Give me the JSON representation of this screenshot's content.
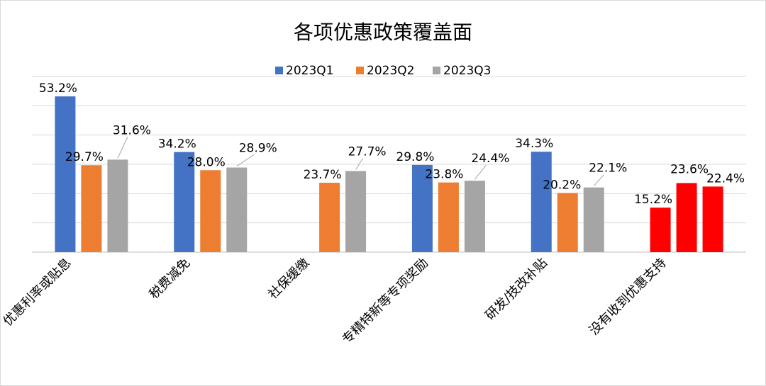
{
  "chart_data": {
    "type": "bar",
    "title": "各项优惠政策覆盖面",
    "categories": [
      "优惠利率或贴息",
      "税费减免",
      "社保缓缴",
      "专精特新等专项奖励",
      "研发/技改补贴",
      "没有收到优惠支持"
    ],
    "series": [
      {
        "name": "2023Q1",
        "color": "#4472C4",
        "values": [
          53.2,
          34.2,
          null,
          29.8,
          34.3,
          15.2
        ],
        "labels": [
          "53.2%",
          "34.2%",
          "",
          "29.8%",
          "34.3%",
          "15.2%"
        ]
      },
      {
        "name": "2023Q2",
        "color": "#ED7D31",
        "values": [
          29.7,
          28.0,
          23.7,
          23.8,
          20.2,
          23.6
        ],
        "labels": [
          "29.7%",
          "28.0%",
          "23.7%",
          "23.8%",
          "20.2%",
          "23.6%"
        ]
      },
      {
        "name": "2023Q3",
        "color": "#A5A5A5",
        "values": [
          31.6,
          28.9,
          27.7,
          24.4,
          22.1,
          22.4
        ],
        "labels": [
          "31.6%",
          "28.9%",
          "27.7%",
          "24.4%",
          "22.1%",
          "22.4%"
        ]
      }
    ],
    "highlight_category_index": 5,
    "highlight_color": "#FF0000",
    "ylim": [
      0,
      60
    ],
    "y_gridlines": [
      10,
      20,
      30,
      40,
      50,
      60
    ],
    "grid": true,
    "legend_position": "top-center",
    "xlabel": "",
    "ylabel": ""
  }
}
